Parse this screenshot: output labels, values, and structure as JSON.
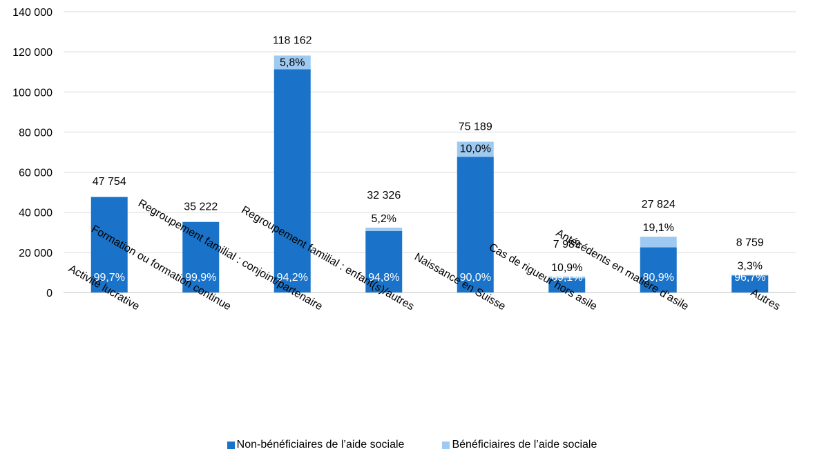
{
  "chart_data": {
    "type": "bar",
    "stacked": true,
    "categories": [
      "Activité lucrative",
      "Formation ou formation continue",
      "Regroupement familial : conjoint/partenaire",
      "Regroupement familial : enfant(s)/autres",
      "Naissance en Suisse",
      "Cas de rigueur hors asile",
      "Antécédents en matière d’asile",
      "Autres"
    ],
    "totals": [
      47754,
      35222,
      118162,
      32326,
      75189,
      7989,
      27824,
      8759
    ],
    "total_labels": [
      "47 754",
      "35 222",
      "118 162",
      "32 326",
      "75 189",
      "7 989",
      "27 824",
      "8 759"
    ],
    "series": [
      {
        "name": "Non-bénéficiaires de l’aide sociale",
        "color": "#1a73c8",
        "shares": [
          0.997,
          0.999,
          0.942,
          0.948,
          0.9,
          0.891,
          0.809,
          0.967
        ],
        "labels": [
          "99,7%",
          "99,9%",
          "94,2%",
          "94,8%",
          "90,0%",
          "89,1%",
          "80,9%",
          "96,7%"
        ]
      },
      {
        "name": "Bénéficiaires de l’aide sociale",
        "color": "#9ec9f0",
        "shares": [
          0.003,
          0.001,
          0.058,
          0.052,
          0.1,
          0.109,
          0.191,
          0.033
        ],
        "labels": [
          "",
          "",
          "5,8%",
          "5,2%",
          "10,0%",
          "10,9%",
          "19,1%",
          "3,3%"
        ]
      }
    ],
    "yticks": [
      "0",
      "20 000",
      "40 000",
      "60 000",
      "80 000",
      "100 000",
      "120 000",
      "140 000"
    ],
    "ylim": [
      0,
      140000
    ],
    "grid": true,
    "legend_position": "bottom"
  },
  "legend": {
    "items": [
      {
        "label": "Non-bénéficiaires de l’aide sociale",
        "color": "#1a73c8"
      },
      {
        "label": "Bénéficiaires de l’aide sociale",
        "color": "#9ec9f0"
      }
    ]
  }
}
